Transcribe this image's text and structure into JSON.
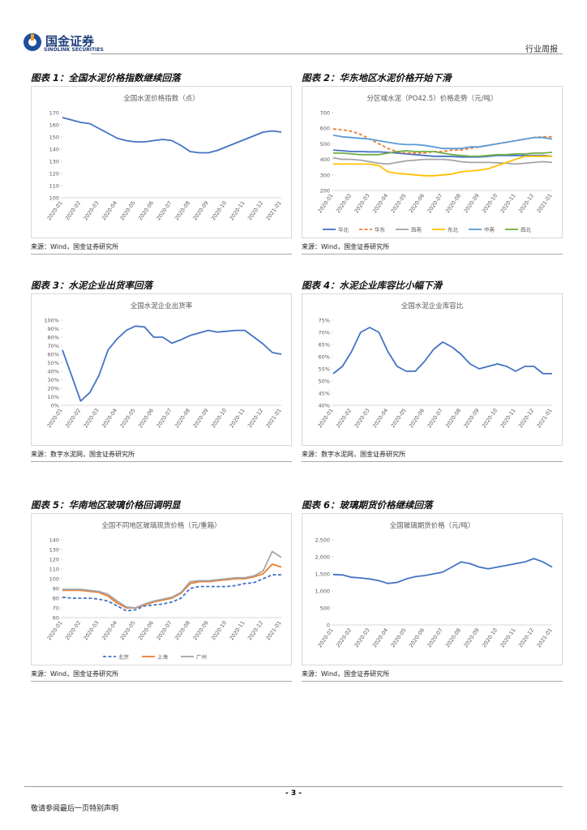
{
  "header": {
    "logo_cn": "国金证券",
    "logo_en": "SINOLINK SECURITIES",
    "report_type": "行业周报"
  },
  "chart_data": [
    {
      "type": "line",
      "figure_title": "图表 1：全国水泥价格指数继续回落",
      "title": "全国水泥价格指数（点）",
      "source": "来源：Wind，国金证券研究所",
      "x": [
        "2020-01",
        null,
        "2020-02",
        null,
        "2020-03",
        null,
        "2020-04",
        null,
        "2020-05",
        null,
        "2020-06",
        null,
        "2020-07",
        null,
        "2020-08",
        null,
        "2020-09",
        null,
        "2020-10",
        null,
        "2020-11",
        null,
        "2020-12",
        null,
        "2021-01"
      ],
      "color": "#4472c4",
      "values": [
        166,
        164,
        162,
        161,
        157,
        153,
        149,
        147,
        146,
        146,
        147,
        148,
        147,
        143,
        138,
        137,
        137,
        139,
        142,
        145,
        148,
        151,
        154,
        155,
        154
      ],
      "ylim": [
        100,
        170
      ],
      "yticks": [
        100,
        110,
        120,
        130,
        140,
        150,
        160,
        170
      ]
    },
    {
      "type": "line",
      "figure_title": "图表 2：华东地区水泥价格开始下滑",
      "title": "分区域水泥（PO42.5）价格走势（元/吨）",
      "source": "来源：Wind，国金证券研究所",
      "x": [
        "2020-01",
        null,
        "2020-02",
        null,
        "2020-03",
        null,
        "2020-04",
        null,
        "2020-05",
        null,
        "2020-06",
        null,
        "2020-07",
        null,
        "2020-08",
        null,
        "2020-09",
        null,
        "2020-10",
        null,
        "2020-11",
        null,
        "2020-12",
        null,
        "2021-01"
      ],
      "series": [
        {
          "name": "华北",
          "color": "#4472c4",
          "values": [
            460,
            455,
            450,
            450,
            448,
            448,
            445,
            440,
            435,
            430,
            425,
            420,
            420,
            418,
            415,
            415,
            415,
            420,
            425,
            425,
            425,
            425,
            425,
            425,
            420
          ]
        },
        {
          "name": "华东",
          "color": "#ed7d31",
          "style": "dashed",
          "values": [
            595,
            590,
            580,
            560,
            530,
            500,
            470,
            450,
            440,
            440,
            440,
            450,
            450,
            460,
            460,
            470,
            480,
            490,
            500,
            510,
            520,
            530,
            540,
            545,
            545
          ]
        },
        {
          "name": "西南",
          "color": "#a5a5a5",
          "values": [
            410,
            400,
            400,
            395,
            385,
            375,
            370,
            380,
            390,
            395,
            400,
            400,
            400,
            395,
            385,
            380,
            380,
            380,
            378,
            375,
            370,
            375,
            380,
            385,
            380
          ]
        },
        {
          "name": "东北",
          "color": "#ffc000",
          "values": [
            370,
            370,
            370,
            370,
            370,
            360,
            320,
            310,
            305,
            300,
            295,
            295,
            300,
            305,
            320,
            325,
            330,
            340,
            360,
            380,
            400,
            420,
            420,
            420,
            420
          ]
        },
        {
          "name": "中南",
          "color": "#5b9bd5",
          "values": [
            555,
            545,
            540,
            535,
            530,
            520,
            510,
            500,
            495,
            495,
            490,
            480,
            470,
            470,
            470,
            480,
            480,
            490,
            500,
            510,
            520,
            530,
            540,
            540,
            530
          ]
        },
        {
          "name": "西北",
          "color": "#70ad47",
          "values": [
            440,
            440,
            435,
            430,
            430,
            430,
            440,
            450,
            455,
            450,
            450,
            450,
            440,
            430,
            425,
            420,
            420,
            425,
            430,
            430,
            435,
            435,
            440,
            440,
            445
          ]
        }
      ],
      "ylim": [
        200,
        700
      ],
      "yticks": [
        200,
        300,
        400,
        500,
        600,
        700
      ]
    },
    {
      "type": "line",
      "figure_title": "图表 3：水泥企业出货率回落",
      "title": "全国水泥企业出货率",
      "source": "来源：数字水泥网，国金证券研究所",
      "x": [
        "2020-01",
        null,
        "2020-02",
        null,
        "2020-03",
        null,
        "2020-04",
        null,
        "2020-05",
        null,
        "2020-06",
        null,
        "2020-07",
        null,
        "2020-08",
        null,
        "2020-09",
        null,
        "2020-10",
        null,
        "2020-11",
        null,
        "2020-12",
        null,
        "2021-01"
      ],
      "color": "#4472c4",
      "values": [
        65,
        35,
        5,
        15,
        35,
        65,
        78,
        88,
        93,
        92,
        80,
        80,
        73,
        77,
        82,
        85,
        88,
        86,
        87,
        88,
        88,
        80,
        72,
        62,
        60
      ],
      "ylim": [
        0,
        100
      ],
      "yticks": [
        {
          "value": 0,
          "label": "0%"
        },
        {
          "value": 10,
          "label": "10%"
        },
        {
          "value": 20,
          "label": "20%"
        },
        {
          "value": 30,
          "label": "30%"
        },
        {
          "value": 40,
          "label": "40%"
        },
        {
          "value": 50,
          "label": "50%"
        },
        {
          "value": 60,
          "label": "60%"
        },
        {
          "value": 70,
          "label": "70%"
        },
        {
          "value": 80,
          "label": "80%"
        },
        {
          "value": 90,
          "label": "90%"
        },
        {
          "value": 100,
          "label": "100%"
        }
      ]
    },
    {
      "type": "line",
      "figure_title": "图表 4：水泥企业库容比小幅下滑",
      "title": "全国水泥企业库容比",
      "source": "来源：数字水泥网，国金证券研究所",
      "x": [
        "2020-01",
        null,
        "2020-02",
        null,
        "2020-03",
        null,
        "2020-04",
        null,
        "2020-05",
        null,
        "2020-06",
        null,
        "2020-07",
        null,
        "2020-08",
        null,
        "2020-09",
        null,
        "2020-10",
        null,
        "2020-11",
        null,
        "2020-12",
        null,
        "2021-01"
      ],
      "color": "#4472c4",
      "values": [
        53,
        56,
        62,
        70,
        72,
        70,
        62,
        56,
        54,
        54,
        58,
        63,
        66,
        64,
        61,
        57,
        55,
        56,
        57,
        56,
        54,
        56,
        56,
        53,
        53
      ],
      "ylim": [
        40,
        75
      ],
      "yticks": [
        {
          "value": 40,
          "label": "40%"
        },
        {
          "value": 45,
          "label": "45%"
        },
        {
          "value": 50,
          "label": "50%"
        },
        {
          "value": 55,
          "label": "55%"
        },
        {
          "value": 60,
          "label": "60%"
        },
        {
          "value": 65,
          "label": "65%"
        },
        {
          "value": 70,
          "label": "70%"
        },
        {
          "value": 75,
          "label": "75%"
        }
      ]
    },
    {
      "type": "line",
      "figure_title": "图表 5：华南地区玻璃价格回调明显",
      "title": "全国不同地区玻璃现货价格（元/重箱）",
      "source": "来源：Wind，国金证券研究所",
      "x": [
        "2020-01",
        null,
        "2020-02",
        null,
        "2020-03",
        null,
        "2020-04",
        null,
        "2020-05",
        null,
        "2020-06",
        null,
        "2020-07",
        null,
        "2020-08",
        null,
        "2020-09",
        null,
        "2020-10",
        null,
        "2020-11",
        null,
        "2020-12",
        null,
        "2021-01"
      ],
      "series": [
        {
          "name": "北京",
          "color": "#4472c4",
          "style": "dashed",
          "values": [
            81,
            80,
            80,
            80,
            79,
            77,
            72,
            67,
            68,
            72,
            73,
            74,
            76,
            80,
            90,
            92,
            92,
            92,
            92,
            93,
            95,
            96,
            100,
            104,
            104
          ]
        },
        {
          "name": "上海",
          "color": "#ed7d31",
          "values": [
            88,
            88,
            88,
            87,
            86,
            82,
            75,
            70,
            70,
            73,
            76,
            78,
            80,
            85,
            95,
            97,
            97,
            98,
            99,
            100,
            100,
            102,
            105,
            115,
            112
          ]
        },
        {
          "name": "广州",
          "color": "#a5a5a5",
          "values": [
            89,
            89,
            89,
            88,
            87,
            84,
            77,
            71,
            70,
            74,
            77,
            79,
            81,
            86,
            97,
            98,
            98,
            99,
            100,
            101,
            101,
            103,
            108,
            128,
            122
          ]
        }
      ],
      "ylim": [
        60,
        140
      ],
      "yticks": [
        60,
        70,
        80,
        90,
        100,
        110,
        120,
        130,
        140
      ]
    },
    {
      "type": "line",
      "figure_title": "图表 6：玻璃期货价格继续回落",
      "title": "全国玻璃期货价格（元/吨）",
      "source": "来源：Wind，国金证券研究所",
      "x": [
        "2020-01",
        null,
        "2020-02",
        null,
        "2020-03",
        null,
        "2020-04",
        null,
        "2020-05",
        null,
        "2020-06",
        null,
        "2020-07",
        null,
        "2020-08",
        null,
        "2020-09",
        null,
        "2020-10",
        null,
        "2020-11",
        null,
        "2020-12",
        null,
        "2021-01"
      ],
      "color": "#4472c4",
      "values": [
        1480,
        1470,
        1400,
        1380,
        1350,
        1300,
        1220,
        1250,
        1350,
        1420,
        1450,
        1500,
        1550,
        1700,
        1850,
        1800,
        1700,
        1650,
        1700,
        1750,
        1800,
        1850,
        1950,
        1850,
        1700
      ],
      "ylim": [
        0,
        2500
      ],
      "yticks": [
        0,
        500,
        {
          "value": 1000,
          "label": "1,000"
        },
        {
          "value": 1500,
          "label": "1,500"
        },
        {
          "value": 2000,
          "label": "2,000"
        },
        {
          "value": 2500,
          "label": "2,500"
        }
      ]
    }
  ],
  "footer": {
    "page": "- 3 -",
    "disclaimer": "敬请参阅最后一页特别声明"
  }
}
